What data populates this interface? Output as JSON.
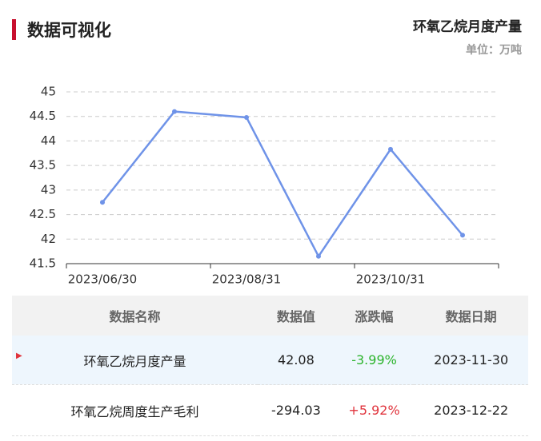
{
  "header": {
    "title": "数据可视化"
  },
  "chart_data": {
    "type": "line",
    "title": "环氧乙烷月度产量",
    "subtitle": "单位：万吨",
    "categories": [
      "2023/06/30",
      null,
      "2023/08/31",
      null,
      "2023/10/31",
      null
    ],
    "series": [
      {
        "name": "环氧乙烷月度产量",
        "color": "#6f93e8",
        "values": [
          42.75,
          44.6,
          44.48,
          41.65,
          43.83,
          42.08
        ]
      }
    ],
    "ylim": [
      41.5,
      45
    ],
    "yticks": [
      41.5,
      42,
      42.5,
      43,
      43.5,
      44,
      44.5,
      45
    ],
    "grid": true
  },
  "table": {
    "columns": [
      "数据名称",
      "数据值",
      "涨跌幅",
      "数据日期"
    ],
    "rows": [
      [
        "环氧乙烷月度产量",
        "42.08",
        "-3.99%",
        "2023-11-30"
      ],
      [
        "环氧乙烷周度生产毛利",
        "-294.03",
        "+5.92%",
        "2023-12-22"
      ]
    ]
  }
}
